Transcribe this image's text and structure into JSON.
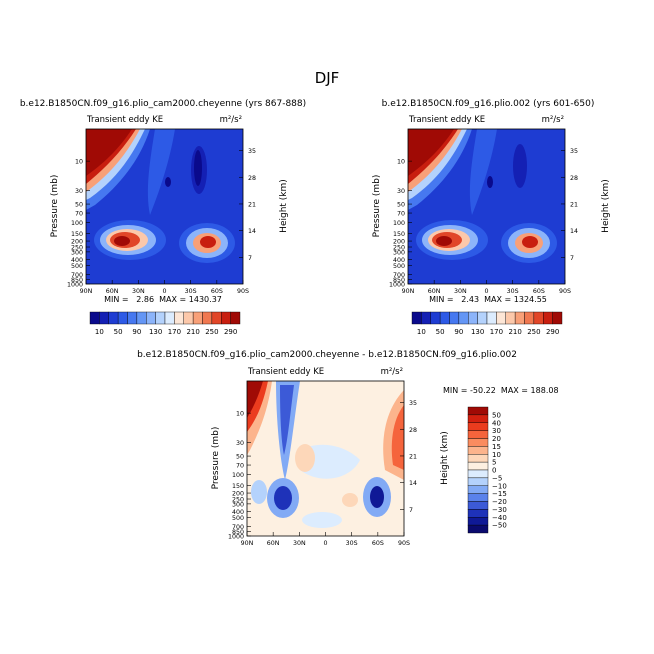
{
  "page": {
    "title": "DJF"
  },
  "panels": [
    {
      "header": "b.e12.B1850CN.f09_g16.plio_cam2000.cheyenne (yrs 867-888)",
      "left_label": "Transient eddy KE",
      "right_label": "m²/s²",
      "stats": "MIN =   2.86  MAX = 1430.37"
    },
    {
      "header": "b.e12.B1850CN.f09_g16.plio.002 (yrs 601-650)",
      "left_label": "Transient eddy KE",
      "right_label": "m²/s²",
      "stats": "MIN =   2.43  MAX = 1324.55"
    },
    {
      "header": "b.e12.B1850CN.f09_g16.plio_cam2000.cheyenne - b.e12.B1850CN.f09_g16.plio.002",
      "left_label": "Transient eddy KE",
      "right_label": "m²/s²",
      "stats": "MIN = -50.22  MAX = 188.08"
    }
  ],
  "chart_data": [
    {
      "type": "heatmap",
      "title": "b.e12.B1850CN.f09_g16.plio_cam2000.cheyenne (yrs 867-888)",
      "xlabel": "",
      "ylabel": "Pressure (mb)",
      "y2label": "Height (km)",
      "x_ticks": [
        "90N",
        "60N",
        "30N",
        "0",
        "30S",
        "60S",
        "90S"
      ],
      "y_ticks": [
        "10",
        "30",
        "50",
        "70",
        "100",
        "150",
        "200",
        "250",
        "300",
        "400",
        "500",
        "700",
        "850",
        "1000"
      ],
      "y2_ticks": [
        "35",
        "28",
        "21",
        "14",
        "7"
      ],
      "min": 2.86,
      "max": 1430.37,
      "levels": [
        10,
        30,
        50,
        70,
        90,
        110,
        130,
        150,
        170,
        190,
        210,
        230,
        250,
        270,
        290
      ],
      "features": [
        {
          "lat": 90,
          "p": 5,
          "value": 300
        },
        {
          "lat": 40,
          "p": 250,
          "value": 290
        },
        {
          "lat": -45,
          "p": 280,
          "value": 270
        },
        {
          "lat": -25,
          "p": 10,
          "value": 10
        }
      ]
    },
    {
      "type": "heatmap",
      "title": "b.e12.B1850CN.f09_g16.plio.002 (yrs 601-650)",
      "xlabel": "",
      "ylabel": "Pressure (mb)",
      "y2label": "Height (km)",
      "x_ticks": [
        "90N",
        "60N",
        "30N",
        "0",
        "30S",
        "60S",
        "90S"
      ],
      "y_ticks": [
        "10",
        "30",
        "50",
        "70",
        "100",
        "150",
        "200",
        "250",
        "300",
        "400",
        "500",
        "700",
        "850",
        "1000"
      ],
      "y2_ticks": [
        "35",
        "28",
        "21",
        "14",
        "7"
      ],
      "min": 2.43,
      "max": 1324.55,
      "levels": [
        10,
        30,
        50,
        70,
        90,
        110,
        130,
        150,
        170,
        190,
        210,
        230,
        250,
        270,
        290
      ],
      "features": [
        {
          "lat": 90,
          "p": 5,
          "value": 300
        },
        {
          "lat": 40,
          "p": 250,
          "value": 290
        },
        {
          "lat": -45,
          "p": 280,
          "value": 270
        },
        {
          "lat": -30,
          "p": 10,
          "value": 10
        }
      ]
    },
    {
      "type": "heatmap",
      "title": "b.e12.B1850CN.f09_g16.plio_cam2000.cheyenne - b.e12.B1850CN.f09_g16.plio.002",
      "xlabel": "",
      "ylabel": "Pressure (mb)",
      "y2label": "Height (km)",
      "x_ticks": [
        "90N",
        "60N",
        "30N",
        "0",
        "30S",
        "60S",
        "90S"
      ],
      "y_ticks": [
        "10",
        "30",
        "50",
        "70",
        "100",
        "150",
        "200",
        "250",
        "300",
        "400",
        "500",
        "700",
        "850",
        "1000"
      ],
      "y2_ticks": [
        "35",
        "28",
        "21",
        "14",
        "7"
      ],
      "min": -50.22,
      "max": 188.08,
      "levels": [
        -50,
        -40,
        -30,
        -20,
        -15,
        -10,
        -5,
        0,
        5,
        10,
        15,
        20,
        30,
        40,
        50
      ],
      "features": [
        {
          "lat": 80,
          "p": 5,
          "value": 55
        },
        {
          "lat": 55,
          "p": 20,
          "value": -40
        },
        {
          "lat": 60,
          "p": 300,
          "value": -25
        },
        {
          "lat": -50,
          "p": 350,
          "value": -35
        },
        {
          "lat": -80,
          "p": 20,
          "value": 35
        },
        {
          "lat": 10,
          "p": 200,
          "value": 10
        }
      ]
    }
  ],
  "colorbars": {
    "main": {
      "labels": [
        "10",
        "50",
        "90",
        "130",
        "170",
        "210",
        "250",
        "290"
      ],
      "colors": [
        "#0a0a8c",
        "#1420b4",
        "#1e3cd2",
        "#2d5ae6",
        "#4678f0",
        "#6496f5",
        "#8cb4fa",
        "#b4d2fc",
        "#dcecfe",
        "#fde6d6",
        "#fcc8aa",
        "#f8a078",
        "#f07850",
        "#e14628",
        "#c81e0f",
        "#a00a05"
      ]
    },
    "diff": {
      "labels": [
        "50",
        "40",
        "30",
        "20",
        "15",
        "10",
        "5",
        "0",
        "−5",
        "−10",
        "−15",
        "−20",
        "−30",
        "−40",
        "−50"
      ],
      "colors": [
        "#a00a05",
        "#d2200f",
        "#eb3c1e",
        "#f5643c",
        "#fa8c5f",
        "#fcb48c",
        "#fdd7b9",
        "#fdf0e1",
        "#dcecfe",
        "#b4d2fc",
        "#82aaf5",
        "#5a82eb",
        "#3c5ad7",
        "#1e32b9",
        "#0f1996",
        "#0a0a6e"
      ]
    }
  }
}
